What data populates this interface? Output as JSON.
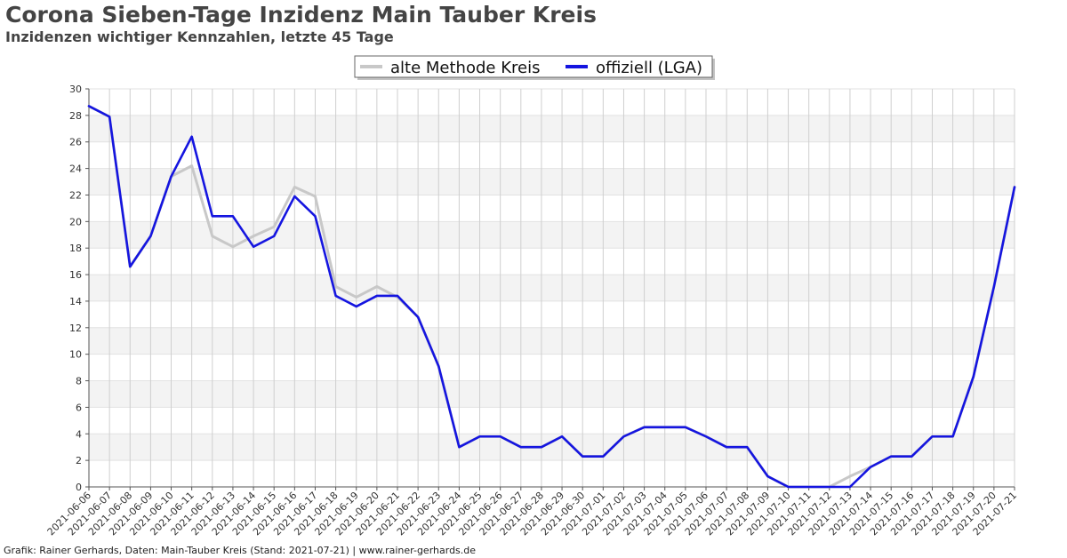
{
  "header": {
    "title": "Corona Sieben-Tage Inzidenz Main Tauber Kreis",
    "subtitle": "Inzidenzen wichtiger Kennzahlen, letzte 45 Tage"
  },
  "footer": {
    "credit": "Grafik: Rainer Gerhards, Daten: Main-Tauber Kreis (Stand: 2021-07-21) | www.rainer-gerhards.de"
  },
  "chart_data": {
    "type": "line",
    "title": "Corona Sieben-Tage Inzidenz Main Tauber Kreis",
    "subtitle": "Inzidenzen wichtiger Kennzahlen, letzte 45 Tage",
    "xlabel": "",
    "ylabel": "",
    "ylim": [
      0,
      30
    ],
    "yticks": [
      0,
      2,
      4,
      6,
      8,
      10,
      12,
      14,
      16,
      18,
      20,
      22,
      24,
      26,
      28,
      30
    ],
    "grid": true,
    "legend_position": "top-center",
    "categories": [
      "2021-06-06",
      "2021-06-07",
      "2021-06-08",
      "2021-06-09",
      "2021-06-10",
      "2021-06-11",
      "2021-06-12",
      "2021-06-13",
      "2021-06-14",
      "2021-06-15",
      "2021-06-16",
      "2021-06-17",
      "2021-06-18",
      "2021-06-19",
      "2021-06-20",
      "2021-06-21",
      "2021-06-22",
      "2021-06-23",
      "2021-06-24",
      "2021-06-25",
      "2021-06-26",
      "2021-06-27",
      "2021-06-28",
      "2021-06-29",
      "2021-06-30",
      "2021-07-01",
      "2021-07-02",
      "2021-07-03",
      "2021-07-04",
      "2021-07-05",
      "2021-07-06",
      "2021-07-07",
      "2021-07-08",
      "2021-07-09",
      "2021-07-10",
      "2021-07-11",
      "2021-07-12",
      "2021-07-13",
      "2021-07-14",
      "2021-07-15",
      "2021-07-16",
      "2021-07-17",
      "2021-07-18",
      "2021-07-19",
      "2021-07-20",
      "2021-07-21"
    ],
    "series": [
      {
        "name": "alte Methode Kreis",
        "color": "#c8c8c8",
        "values": [
          28.7,
          27.9,
          16.6,
          18.9,
          23.4,
          24.2,
          18.9,
          18.1,
          18.9,
          19.6,
          22.6,
          21.9,
          15.1,
          14.3,
          15.1,
          14.3,
          12.8,
          9.1,
          3.0,
          3.8,
          3.8,
          3.0,
          3.0,
          3.8,
          2.3,
          2.3,
          3.8,
          4.5,
          4.5,
          4.5,
          3.8,
          3.0,
          3.0,
          0.8,
          0.0,
          0.0,
          0.0,
          0.8,
          1.5,
          2.3,
          2.3,
          3.8,
          3.8,
          8.3,
          15.1,
          22.6
        ]
      },
      {
        "name": "offiziell (LGA)",
        "color": "#1515e0",
        "values": [
          28.7,
          27.9,
          16.6,
          18.9,
          23.4,
          26.4,
          20.4,
          20.4,
          18.1,
          18.9,
          21.9,
          20.4,
          14.4,
          13.6,
          14.4,
          14.4,
          12.8,
          9.1,
          3.0,
          3.8,
          3.8,
          3.0,
          3.0,
          3.8,
          2.3,
          2.3,
          3.8,
          4.5,
          4.5,
          4.5,
          3.8,
          3.0,
          3.0,
          0.8,
          0.0,
          0.0,
          0.0,
          0.0,
          1.5,
          2.3,
          2.3,
          3.8,
          3.8,
          8.3,
          15.1,
          22.6
        ]
      }
    ]
  }
}
